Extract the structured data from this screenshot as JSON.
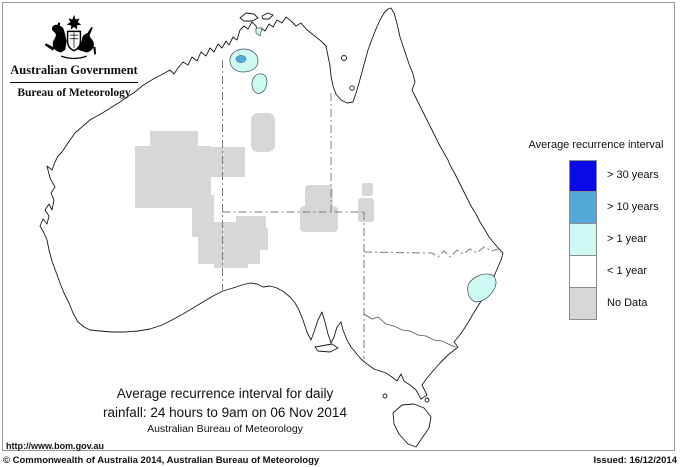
{
  "header": {
    "gov_title": "Australian Government",
    "bureau_title": "Bureau of Meteorology"
  },
  "legend": {
    "title": "Average recurrence interval",
    "items": [
      {
        "label": "> 30 years",
        "color": "#0a0ae8"
      },
      {
        "label": "> 10 years",
        "color": "#55a9d8"
      },
      {
        "label": "> 1 year",
        "color": "#cdfaf2"
      },
      {
        "label": "< 1 year",
        "color": "#ffffff"
      },
      {
        "label": "No Data",
        "color": "#d7d7d7"
      }
    ]
  },
  "map_title": {
    "line1": "Average recurrence interval for daily",
    "line2": "rainfall: 24 hours to 9am on 06 Nov 2014",
    "line3": "Australian Bureau of Meteorology"
  },
  "footer": {
    "url": "http://www.bom.gov.au",
    "copyright": "© Commonwealth of Australia 2014, Australian Bureau of Meteorology",
    "issued": "Issued: 16/12/2014"
  },
  "map": {
    "subject": "Australia",
    "regions": [
      {
        "area": "north-west Northern Territory blob",
        "value": "> 1 year with small > 10 years core"
      },
      {
        "area": "central Northern Territory blob",
        "value": "> 1 year"
      },
      {
        "area": "Top End coastal spot (Northern Territory)",
        "value": "> 1 year"
      },
      {
        "area": "north-east New South Wales (inland of coast)",
        "value": "> 1 year"
      },
      {
        "area": "central Western Australia / central Australia patches",
        "value": "No Data"
      },
      {
        "area": "remainder of continent",
        "value": "< 1 year"
      }
    ]
  }
}
